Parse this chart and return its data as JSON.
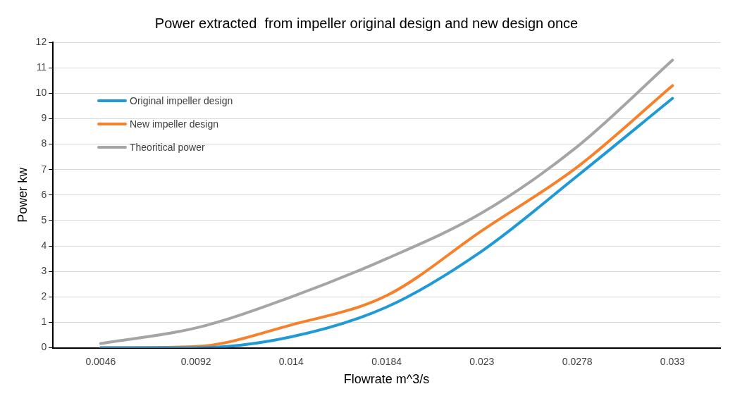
{
  "chart_data": {
    "type": "line",
    "title": "Power extracted  from impeller original design and new design once",
    "xlabel": "Flowrate m^3/s",
    "ylabel": "Power kw",
    "categories": [
      "0.0046",
      "0.0092",
      "0.014",
      "0.0184",
      "0.023",
      "0.0278",
      "0.033"
    ],
    "series": [
      {
        "name": "Original impeller design",
        "color": "#1f9ad6",
        "values": [
          0,
          0,
          0.43,
          1.6,
          3.8,
          6.75,
          9.8
        ]
      },
      {
        "name": "New impeller design",
        "color": "#f7812a",
        "values": [
          0,
          0.05,
          0.9,
          2.05,
          4.6,
          7.1,
          10.3
        ]
      },
      {
        "name": "Theoritical power",
        "color": "#a5a5a5",
        "values": [
          0.17,
          0.78,
          2.0,
          3.5,
          5.3,
          7.9,
          11.3
        ]
      }
    ],
    "ylim": [
      0,
      12
    ],
    "yticks": [
      0,
      1,
      2,
      3,
      4,
      5,
      6,
      7,
      8,
      9,
      10,
      11,
      12
    ],
    "grid": "y",
    "legend": "top left",
    "marker": "none",
    "line_style": "solid"
  }
}
